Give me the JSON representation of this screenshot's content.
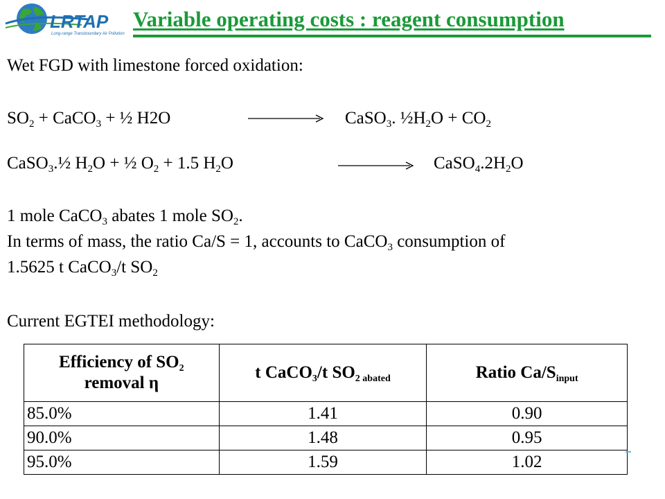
{
  "header": {
    "logo_text": "LRTAP",
    "logo_subtitle": "Long-range Transboundary Air Pollution",
    "title": "Variable operating costs : reagent consumption"
  },
  "body": {
    "intro": "Wet FGD with limestone forced oxidation:",
    "eq1": {
      "lhs": [
        [
          "SO",
          ""
        ],
        [
          "2",
          "sub"
        ],
        [
          " + CaCO",
          ""
        ],
        [
          "3",
          "sub"
        ],
        [
          " + ½ H2O",
          ""
        ]
      ],
      "rhs": [
        [
          "CaSO",
          ""
        ],
        [
          "3",
          "sub"
        ],
        [
          ". ½H",
          ""
        ],
        [
          "2",
          "sub"
        ],
        [
          "O + CO",
          ""
        ],
        [
          "2",
          "sub"
        ]
      ]
    },
    "eq2": {
      "lhs": [
        [
          "CaSO",
          ""
        ],
        [
          "3",
          "sub"
        ],
        [
          ".½  H",
          ""
        ],
        [
          "2",
          "sub"
        ],
        [
          "O + ½  O",
          ""
        ],
        [
          "2",
          "sub"
        ],
        [
          " +  1.5 H",
          ""
        ],
        [
          "2",
          "sub"
        ],
        [
          "O",
          ""
        ]
      ],
      "rhs": [
        [
          "CaSO",
          ""
        ],
        [
          "4",
          "sub"
        ],
        [
          ".2H",
          ""
        ],
        [
          "2",
          "sub"
        ],
        [
          "O",
          ""
        ]
      ]
    },
    "mole_line": [
      [
        "1 mole CaCO",
        ""
      ],
      [
        "3",
        "sub"
      ],
      [
        " abates 1 mole SO",
        ""
      ],
      [
        "2",
        "sub"
      ],
      [
        ".",
        ""
      ]
    ],
    "mass_line": [
      [
        "In terms of mass,  the ratio Ca/S = 1, accounts to CaCO",
        ""
      ],
      [
        "3",
        "sub"
      ],
      [
        " consumption  of",
        ""
      ]
    ],
    "value_line": [
      [
        "1.5625 t CaCO",
        ""
      ],
      [
        "3",
        "sub"
      ],
      [
        "/t SO",
        ""
      ],
      [
        "2",
        "sub"
      ]
    ],
    "method": "Current EGTEI methodology:"
  },
  "table": {
    "headers": [
      [
        [
          "Efficiency of SO",
          ""
        ],
        [
          "2",
          "sub"
        ],
        [
          " removal η",
          ""
        ]
      ],
      [
        [
          "t CaCO",
          ""
        ],
        [
          "3",
          "sub"
        ],
        [
          "/t SO",
          ""
        ],
        [
          "2 abated",
          "sub"
        ]
      ],
      [
        [
          "Ratio Ca/S",
          ""
        ],
        [
          "input",
          "sub"
        ]
      ]
    ],
    "rows": [
      [
        "85.0%",
        "1.41",
        "0.90"
      ],
      [
        "90.0%",
        "1.48",
        "0.95"
      ],
      [
        "95.0%",
        "1.59",
        "1.02"
      ]
    ]
  },
  "colors": {
    "title_green": "#1a9a38",
    "logo_blue": "#1f6fb0",
    "globe_green": "#3aa635"
  }
}
